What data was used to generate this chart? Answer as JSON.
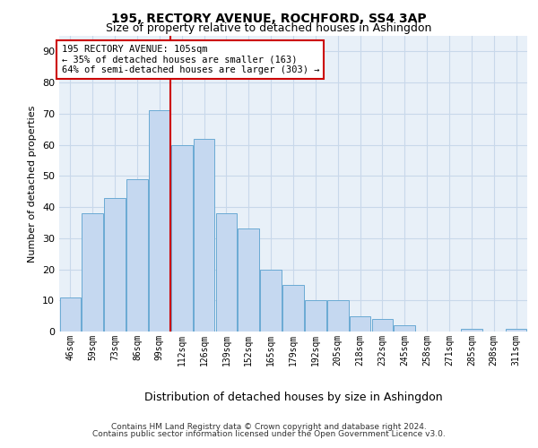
{
  "title1": "195, RECTORY AVENUE, ROCHFORD, SS4 3AP",
  "title2": "Size of property relative to detached houses in Ashingdon",
  "xlabel": "Distribution of detached houses by size in Ashingdon",
  "ylabel": "Number of detached properties",
  "categories": [
    "46sqm",
    "59sqm",
    "73sqm",
    "86sqm",
    "99sqm",
    "112sqm",
    "126sqm",
    "139sqm",
    "152sqm",
    "165sqm",
    "179sqm",
    "192sqm",
    "205sqm",
    "218sqm",
    "232sqm",
    "245sqm",
    "258sqm",
    "271sqm",
    "285sqm",
    "298sqm",
    "311sqm"
  ],
  "values": [
    11,
    38,
    43,
    49,
    71,
    60,
    62,
    38,
    33,
    20,
    15,
    10,
    10,
    5,
    4,
    2,
    0,
    0,
    1,
    0,
    1
  ],
  "bar_color": "#c5d8f0",
  "bar_edge_color": "#6aaad4",
  "vline_index": 4.5,
  "annotation_text": "195 RECTORY AVENUE: 105sqm\n← 35% of detached houses are smaller (163)\n64% of semi-detached houses are larger (303) →",
  "annotation_box_color": "#ffffff",
  "annotation_box_edge": "#cc0000",
  "annotation_text_color": "#000000",
  "vline_color": "#cc0000",
  "ylim": [
    0,
    95
  ],
  "yticks": [
    0,
    10,
    20,
    30,
    40,
    50,
    60,
    70,
    80,
    90
  ],
  "grid_color": "#c8d8ea",
  "bg_color": "#e8f0f8",
  "footer1": "Contains HM Land Registry data © Crown copyright and database right 2024.",
  "footer2": "Contains public sector information licensed under the Open Government Licence v3.0."
}
